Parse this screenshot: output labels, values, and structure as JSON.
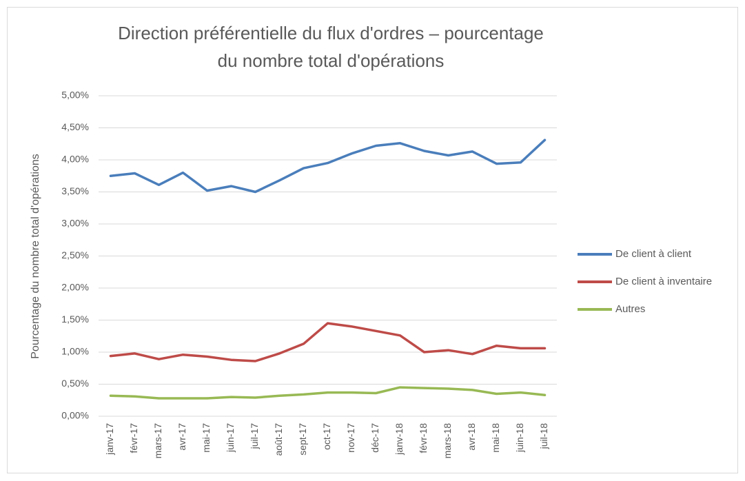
{
  "chart_data": {
    "type": "line",
    "title": "Direction préférentielle du flux d'ordres – pourcentage du nombre total d'opérations",
    "y_label": "Pourcentage du nombre total d'opérations",
    "categories": [
      "janv-17",
      "févr-17",
      "mars-17",
      "avr-17",
      "mai-17",
      "juin-17",
      "juil-17",
      "août-17",
      "sept-17",
      "oct-17",
      "nov-17",
      "déc-17",
      "janv-18",
      "févr-18",
      "mars-18",
      "avr-18",
      "mai-18",
      "juin-18",
      "juil-18"
    ],
    "series": [
      {
        "name": "De client à client",
        "color": "#4a7ebb",
        "values": [
          3.75,
          3.79,
          3.61,
          3.8,
          3.52,
          3.59,
          3.5,
          3.68,
          3.87,
          3.95,
          4.1,
          4.22,
          4.26,
          4.14,
          4.07,
          4.13,
          3.94,
          3.96,
          4.31
        ]
      },
      {
        "name": "De client à inventaire",
        "color": "#be4b48",
        "values": [
          0.94,
          0.98,
          0.89,
          0.96,
          0.93,
          0.88,
          0.86,
          0.98,
          1.13,
          1.45,
          1.4,
          1.33,
          1.26,
          1.0,
          1.03,
          0.97,
          1.1,
          1.06,
          1.06
        ]
      },
      {
        "name": "Autres",
        "color": "#98b954",
        "values": [
          0.32,
          0.31,
          0.28,
          0.28,
          0.28,
          0.3,
          0.29,
          0.32,
          0.34,
          0.37,
          0.37,
          0.36,
          0.45,
          0.44,
          0.43,
          0.41,
          0.35,
          0.37,
          0.33
        ]
      }
    ],
    "ylim": [
      0,
      5
    ],
    "yticks": [
      {
        "value": 0,
        "label": "0,00%"
      },
      {
        "value": 0.5,
        "label": "0,50%"
      },
      {
        "value": 1,
        "label": "1,00%"
      },
      {
        "value": 1.5,
        "label": "1,50%"
      },
      {
        "value": 2,
        "label": "2,00%"
      },
      {
        "value": 2.5,
        "label": "2,50%"
      },
      {
        "value": 3,
        "label": "3,00%"
      },
      {
        "value": 3.5,
        "label": "3,50%"
      },
      {
        "value": 4,
        "label": "4,00%"
      },
      {
        "value": 4.5,
        "label": "4,50%"
      },
      {
        "value": 5,
        "label": "5,00%"
      }
    ],
    "grid": true,
    "legend": "right"
  }
}
